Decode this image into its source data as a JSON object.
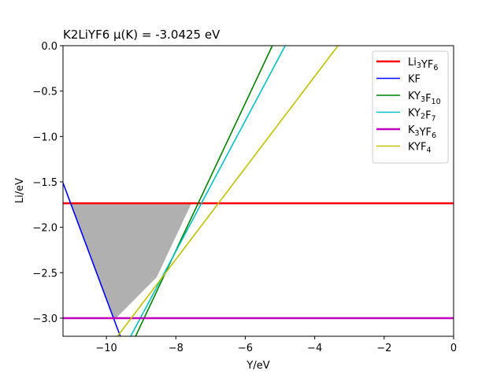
{
  "chart_data": {
    "type": "line",
    "title": "K2LiYF6 μ(K) = -3.0425 eV",
    "xlabel": "Y/eV",
    "ylabel": "Li/eV",
    "xlim": [
      -11.25,
      0
    ],
    "ylim": [
      -3.2,
      0
    ],
    "xticks": [
      -10,
      -8,
      -6,
      -4,
      -2,
      0
    ],
    "xtick_labels": [
      "−10",
      "−8",
      "−6",
      "−4",
      "−2",
      "0"
    ],
    "yticks": [
      0.0,
      -0.5,
      -1.0,
      -1.5,
      -2.0,
      -2.5,
      -3.0
    ],
    "ytick_labels": [
      "0.0",
      "−0.5",
      "−1.0",
      "−1.5",
      "−2.0",
      "−2.5",
      "−3.0"
    ],
    "grid": false,
    "legend_position": "upper right",
    "series": [
      {
        "name": "Li3YF6",
        "label_main": "Li",
        "sub1": "3",
        "mid": "YF",
        "sub2": "6",
        "color": "#ff0000",
        "width": 2.5,
        "x": [
          -11.25,
          0
        ],
        "y": [
          -1.735,
          -1.735
        ]
      },
      {
        "name": "KF",
        "label_main": "KF",
        "sub1": "",
        "mid": "",
        "sub2": "",
        "color": "#0000ff",
        "width": 1.6,
        "x": [
          -11.25,
          -9.6
        ],
        "y": [
          -1.51,
          -3.2
        ]
      },
      {
        "name": "KY3F10",
        "label_main": "KY",
        "sub1": "3",
        "mid": "F",
        "sub2": "10",
        "color": "#008000",
        "width": 1.6,
        "x": [
          -9.16,
          -5.22
        ],
        "y": [
          -3.2,
          0
        ]
      },
      {
        "name": "KY2F7",
        "label_main": "KY",
        "sub1": "2",
        "mid": "F",
        "sub2": "7",
        "color": "#00bfbf",
        "width": 1.6,
        "x": [
          -9.3,
          -4.85
        ],
        "y": [
          -3.2,
          0
        ]
      },
      {
        "name": "K3YF6",
        "label_main": "K",
        "sub1": "3",
        "mid": "YF",
        "sub2": "6",
        "color": "#bf00bf",
        "width": 2.5,
        "x": [
          -11.25,
          0
        ],
        "y": [
          -3.0,
          -3.0
        ]
      },
      {
        "name": "KYF4",
        "label_main": "KYF",
        "sub1": "4",
        "mid": "",
        "sub2": "",
        "color": "#bfbf00",
        "width": 1.6,
        "x": [
          -9.68,
          -3.33
        ],
        "y": [
          -3.2,
          0
        ]
      }
    ],
    "stable_region": {
      "color": "#b0b0b0",
      "vertices": [
        [
          -11.02,
          -1.735
        ],
        [
          -7.55,
          -1.735
        ],
        [
          -8.55,
          -2.55
        ],
        [
          -9.72,
          -3.0
        ],
        [
          -9.8,
          -3.0
        ]
      ]
    }
  }
}
